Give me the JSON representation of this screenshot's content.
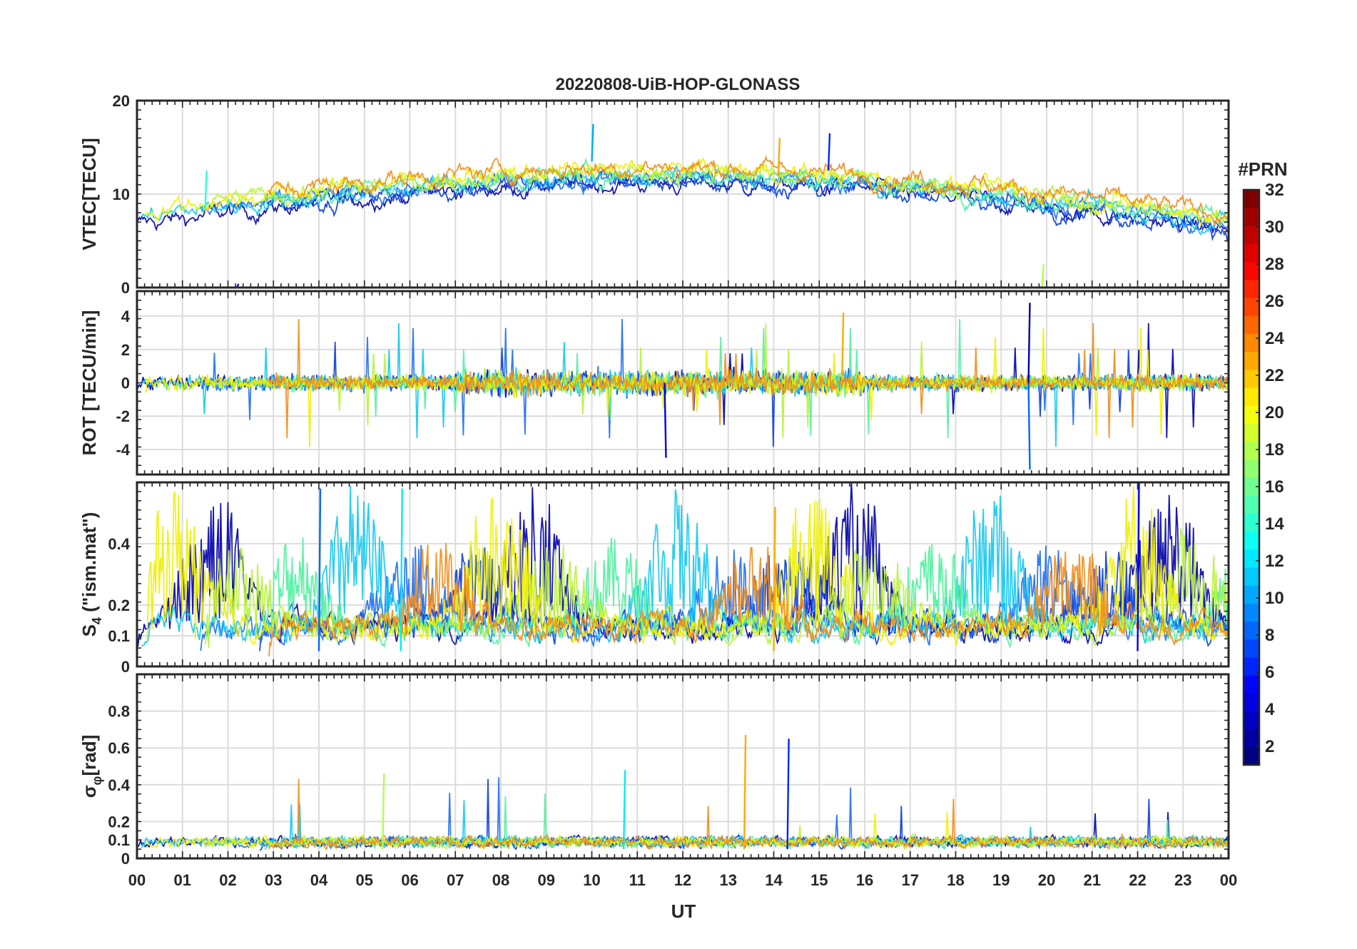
{
  "chart_data": {
    "type": "line",
    "title": "20220808-UiB-HOP-GLONASS",
    "xlabel": "UT",
    "x_ticks": [
      "00",
      "01",
      "02",
      "03",
      "04",
      "05",
      "06",
      "07",
      "08",
      "09",
      "10",
      "11",
      "12",
      "13",
      "14",
      "15",
      "16",
      "17",
      "18",
      "19",
      "20",
      "21",
      "22",
      "23",
      "00"
    ],
    "xlim": [
      0,
      24
    ],
    "grid": true,
    "panels": [
      {
        "ylabel": "VTEC[TECU]",
        "ylim": [
          0,
          20
        ],
        "y_ticks": [
          0,
          10,
          20
        ],
        "y_tick_labels": [
          "0",
          "10",
          "20"
        ],
        "series_note": "per-satellite VTEC traces, ~6-17 TECU, peaking near 10-15 UT",
        "highlight_values": [
          {
            "prn": 14,
            "ut": 1.5,
            "value": 12.5
          },
          {
            "prn": 10,
            "ut": 10.0,
            "value": 17.5
          },
          {
            "prn": 23,
            "ut": 14.1,
            "value": 16.0
          },
          {
            "prn": 6,
            "ut": 15.2,
            "value": 16.5
          },
          {
            "prn": 5,
            "ut": 2.2,
            "value": 0.4
          },
          {
            "prn": 18,
            "ut": 19.9,
            "value": 2.5
          }
        ]
      },
      {
        "ylabel": "ROT [TECU/min]",
        "ylim": [
          -5.5,
          5.5
        ],
        "y_ticks": [
          -4,
          -2,
          0,
          2,
          4
        ],
        "y_tick_labels": [
          "-4",
          "-2",
          "0",
          "2",
          "4"
        ],
        "series_note": "rate of TEC noise around 0 with spikes to +/-4",
        "highlight_values": [
          {
            "prn": 2,
            "ut": 19.6,
            "value": 4.8
          },
          {
            "prn": 8,
            "ut": 19.6,
            "value": -5.2
          },
          {
            "prn": 23,
            "ut": 15.5,
            "value": 4.2
          },
          {
            "prn": 4,
            "ut": 11.6,
            "value": -4.5
          }
        ]
      },
      {
        "ylabel": "S4 (\"ism.mat\")",
        "ylabel_main": "S",
        "ylabel_sub": "4",
        "ylabel_rest": " (\"ism.mat\")",
        "ylim": [
          0,
          0.6
        ],
        "y_ticks": [
          0,
          0.1,
          0.2,
          0.4
        ],
        "y_tick_labels": [
          "0",
          "0.1",
          "0.2",
          "0.4"
        ],
        "series_note": "amplitude scintillation index bursts up to ~0.6",
        "highlight_values": [
          {
            "prn": 8,
            "ut": 4.0,
            "value": 0.58
          },
          {
            "prn": 12,
            "ut": 5.8,
            "value": 0.58
          },
          {
            "prn": 23,
            "ut": 14.0,
            "value": 0.52
          },
          {
            "prn": 4,
            "ut": 22.0,
            "value": 0.6
          }
        ]
      },
      {
        "ylabel": "σφ[rad]",
        "ylabel_main": "σ",
        "ylabel_sub": "φ",
        "ylabel_rest": "[rad]",
        "ylim": [
          0,
          1.0
        ],
        "y_ticks": [
          0,
          0.1,
          0.2,
          0.4,
          0.6,
          0.8
        ],
        "y_tick_labels": [
          "0",
          "0.1",
          "0.2",
          "0.4",
          "0.6",
          "0.8"
        ],
        "series_note": "phase scintillation mostly 0.02-0.15 with spikes",
        "highlight_values": [
          {
            "prn": 23,
            "ut": 13.35,
            "value": 0.67
          },
          {
            "prn": 6,
            "ut": 14.3,
            "value": 0.65
          },
          {
            "prn": 12,
            "ut": 10.7,
            "value": 0.48
          },
          {
            "prn": 18,
            "ut": 5.4,
            "value": 0.46
          }
        ]
      }
    ],
    "colorbar": {
      "label": "#PRN",
      "range": [
        1,
        32
      ],
      "tick_labels": [
        "2",
        "4",
        "6",
        "8",
        "10",
        "12",
        "14",
        "16",
        "18",
        "20",
        "22",
        "24",
        "26",
        "28",
        "30",
        "32"
      ],
      "tick_values": [
        2,
        4,
        6,
        8,
        10,
        12,
        14,
        16,
        18,
        20,
        22,
        24,
        26,
        28,
        30,
        32
      ],
      "colormap": "jet"
    },
    "series_colors": [
      "#0000a6",
      "#0a3cd6",
      "#1e6ef2",
      "#12c8f0",
      "#52f0a0",
      "#b8f23a",
      "#f0f000",
      "#f28c1a"
    ]
  }
}
